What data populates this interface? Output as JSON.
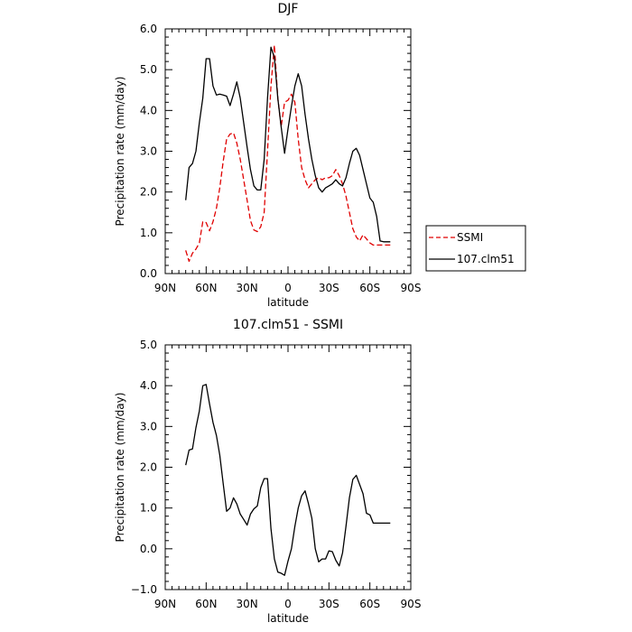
{
  "chart_data": [
    {
      "type": "line",
      "title": "DJF",
      "xlabel": "latitude",
      "ylabel": "Precipitation rate (mm/day)",
      "xlim": [
        90,
        -90
      ],
      "ylim": [
        0,
        6
      ],
      "x_ticks": [
        90,
        60,
        30,
        0,
        -30,
        -60,
        -90
      ],
      "x_tick_labels": [
        "90N",
        "60N",
        "30N",
        "0",
        "30S",
        "60S",
        "90S"
      ],
      "y_ticks": [
        0,
        1,
        2,
        3,
        4,
        5,
        6
      ],
      "y_tick_labels": [
        "0.0",
        "1.0",
        "2.0",
        "3.0",
        "4.0",
        "5.0",
        "6.0"
      ],
      "legend": "outside-right",
      "series": [
        {
          "name": "SSMI",
          "color": "#e00000",
          "dash": "dashed",
          "x": [
            75,
            72.5,
            70,
            67.5,
            65,
            62.5,
            60,
            57.5,
            55,
            52.5,
            50,
            47.5,
            45,
            42.5,
            40,
            37.5,
            35,
            32.5,
            30,
            27.5,
            25,
            22.5,
            20,
            17.5,
            15,
            12.5,
            10,
            7.5,
            5,
            2.5,
            0,
            -2.5,
            -5,
            -7.5,
            -10,
            -12.5,
            -15,
            -17.5,
            -20,
            -22.5,
            -25,
            -27.5,
            -30,
            -32.5,
            -35,
            -37.5,
            -40,
            -42.5,
            -45,
            -47.5,
            -50,
            -52.5,
            -55,
            -57.5,
            -60,
            -62.5,
            -65,
            -67.5,
            -70,
            -72.5,
            -75
          ],
          "y": [
            0.57,
            0.3,
            0.5,
            0.6,
            0.75,
            1.27,
            1.25,
            1.05,
            1.27,
            1.6,
            2.1,
            2.75,
            3.3,
            3.42,
            3.45,
            3.2,
            2.8,
            2.3,
            1.8,
            1.3,
            1.07,
            1.03,
            1.15,
            1.5,
            3.0,
            4.6,
            5.6,
            4.3,
            3.6,
            4.2,
            4.25,
            4.4,
            4.2,
            3.3,
            2.6,
            2.3,
            2.1,
            2.2,
            2.3,
            2.35,
            2.3,
            2.35,
            2.35,
            2.4,
            2.55,
            2.4,
            2.2,
            1.9,
            1.5,
            1.1,
            0.9,
            0.8,
            0.95,
            0.85,
            0.75,
            0.7,
            0.7,
            0.7,
            0.7,
            0.7,
            0.7
          ]
        },
        {
          "name": "107.clm51",
          "color": "#000000",
          "dash": "solid",
          "x": [
            75,
            72.5,
            70,
            67.5,
            65,
            62.5,
            60,
            57.5,
            55,
            52.5,
            50,
            47.5,
            45,
            42.5,
            40,
            37.5,
            35,
            32.5,
            30,
            27.5,
            25,
            22.5,
            20,
            17.5,
            15,
            12.5,
            10,
            7.5,
            5,
            2.5,
            0,
            -2.5,
            -5,
            -7.5,
            -10,
            -12.5,
            -15,
            -17.5,
            -20,
            -22.5,
            -25,
            -27.5,
            -30,
            -32.5,
            -35,
            -37.5,
            -40,
            -42.5,
            -45,
            -47.5,
            -50,
            -52.5,
            -55,
            -57.5,
            -60,
            -62.5,
            -65,
            -67.5,
            -70,
            -72.5,
            -75
          ],
          "y": [
            1.8,
            2.6,
            2.7,
            3.0,
            3.7,
            4.3,
            5.27,
            5.27,
            4.6,
            4.38,
            4.4,
            4.38,
            4.35,
            4.12,
            4.4,
            4.7,
            4.3,
            3.7,
            3.1,
            2.55,
            2.15,
            2.05,
            2.05,
            2.8,
            4.3,
            5.55,
            5.3,
            4.3,
            3.6,
            2.95,
            3.55,
            4.1,
            4.6,
            4.9,
            4.6,
            3.9,
            3.3,
            2.8,
            2.4,
            2.1,
            2.0,
            2.1,
            2.15,
            2.2,
            2.3,
            2.2,
            2.15,
            2.35,
            2.7,
            3.0,
            3.07,
            2.9,
            2.55,
            2.2,
            1.85,
            1.75,
            1.4,
            0.8,
            0.78,
            0.78,
            0.78
          ]
        }
      ]
    },
    {
      "type": "line",
      "title": "107.clm51 - SSMI",
      "xlabel": "latitude",
      "ylabel": "Precipitation rate (mm/day)",
      "xlim": [
        90,
        -90
      ],
      "ylim": [
        -1,
        5
      ],
      "x_ticks": [
        90,
        60,
        30,
        0,
        -30,
        -60,
        -90
      ],
      "x_tick_labels": [
        "90N",
        "60N",
        "30N",
        "0",
        "30S",
        "60S",
        "90S"
      ],
      "y_ticks": [
        -1,
        0,
        1,
        2,
        3,
        4,
        5
      ],
      "y_tick_labels": [
        "−1.0",
        "0.0",
        "1.0",
        "2.0",
        "3.0",
        "4.0",
        "5.0"
      ],
      "series": [
        {
          "color": "#000000",
          "dash": "solid",
          "x": [
            75,
            72.5,
            70,
            67.5,
            65,
            62.5,
            60,
            57.5,
            55,
            52.5,
            50,
            47.5,
            45,
            42.5,
            40,
            37.5,
            35,
            32.5,
            30,
            27.5,
            25,
            22.5,
            20,
            17.5,
            15,
            12.5,
            10,
            7.5,
            5,
            2.5,
            0,
            -2.5,
            -5,
            -7.5,
            -10,
            -12.5,
            -15,
            -17.5,
            -20,
            -22.5,
            -25,
            -27.5,
            -30,
            -32.5,
            -35,
            -37.5,
            -40,
            -42.5,
            -45,
            -47.5,
            -50,
            -52.5,
            -55,
            -57.5,
            -60,
            -62.5,
            -65,
            -67.5,
            -70,
            -72.5,
            -75
          ],
          "y": [
            2.05,
            2.42,
            2.45,
            2.97,
            3.38,
            4.0,
            4.03,
            3.55,
            3.1,
            2.78,
            2.3,
            1.6,
            0.92,
            1.0,
            1.25,
            1.1,
            0.85,
            0.72,
            0.58,
            0.85,
            0.98,
            1.05,
            1.5,
            1.72,
            1.72,
            0.5,
            -0.25,
            -0.57,
            -0.6,
            -0.65,
            -0.3,
            0.0,
            0.55,
            1.0,
            1.3,
            1.42,
            1.1,
            0.75,
            0.0,
            -0.32,
            -0.25,
            -0.25,
            -0.05,
            -0.07,
            -0.28,
            -0.42,
            -0.1,
            0.55,
            1.25,
            1.7,
            1.8,
            1.58,
            1.35,
            0.87,
            0.83,
            0.63,
            0.63,
            0.63,
            0.63,
            0.63,
            0.63
          ]
        }
      ]
    }
  ]
}
